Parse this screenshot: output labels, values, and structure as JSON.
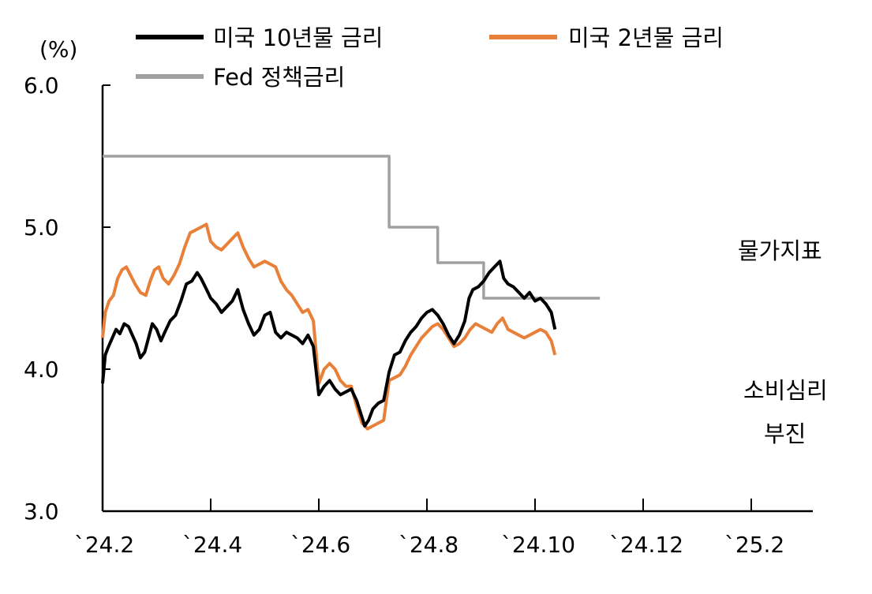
{
  "chart_data": {
    "type": "line",
    "unit_label": "(%)",
    "ylim": [
      3.0,
      6.0
    ],
    "y_ticks": [
      "6.0",
      "5.0",
      "4.0",
      "3.0"
    ],
    "x_ticks": [
      "`24.2",
      "`24.4",
      "`24.6",
      "`24.8",
      "`24.10",
      "`24.12",
      "`25.2"
    ],
    "grid": false,
    "legend_position": "top",
    "series": [
      {
        "name": "미국 10년물 금리",
        "color": "#000000",
        "points": [
          [
            0.0,
            3.9
          ],
          [
            0.05,
            4.1
          ],
          [
            0.1,
            4.15
          ],
          [
            0.18,
            4.22
          ],
          [
            0.25,
            4.28
          ],
          [
            0.32,
            4.25
          ],
          [
            0.4,
            4.32
          ],
          [
            0.48,
            4.3
          ],
          [
            0.55,
            4.24
          ],
          [
            0.62,
            4.18
          ],
          [
            0.7,
            4.08
          ],
          [
            0.78,
            4.12
          ],
          [
            0.85,
            4.22
          ],
          [
            0.92,
            4.32
          ],
          [
            1.0,
            4.28
          ],
          [
            1.08,
            4.2
          ],
          [
            1.15,
            4.26
          ],
          [
            1.25,
            4.34
          ],
          [
            1.35,
            4.38
          ],
          [
            1.45,
            4.48
          ],
          [
            1.55,
            4.6
          ],
          [
            1.65,
            4.62
          ],
          [
            1.75,
            4.68
          ],
          [
            1.82,
            4.64
          ],
          [
            1.9,
            4.58
          ],
          [
            2.0,
            4.5
          ],
          [
            2.1,
            4.46
          ],
          [
            2.2,
            4.4
          ],
          [
            2.3,
            4.44
          ],
          [
            2.4,
            4.48
          ],
          [
            2.5,
            4.56
          ],
          [
            2.6,
            4.42
          ],
          [
            2.7,
            4.32
          ],
          [
            2.8,
            4.24
          ],
          [
            2.9,
            4.28
          ],
          [
            3.0,
            4.38
          ],
          [
            3.1,
            4.4
          ],
          [
            3.2,
            4.26
          ],
          [
            3.3,
            4.22
          ],
          [
            3.4,
            4.26
          ],
          [
            3.5,
            4.24
          ],
          [
            3.6,
            4.22
          ],
          [
            3.7,
            4.18
          ],
          [
            3.8,
            4.24
          ],
          [
            3.9,
            4.16
          ],
          [
            4.0,
            3.82
          ],
          [
            4.1,
            3.88
          ],
          [
            4.2,
            3.92
          ],
          [
            4.3,
            3.86
          ],
          [
            4.4,
            3.82
          ],
          [
            4.5,
            3.84
          ],
          [
            4.6,
            3.86
          ],
          [
            4.7,
            3.78
          ],
          [
            4.8,
            3.66
          ],
          [
            4.85,
            3.6
          ],
          [
            4.92,
            3.64
          ],
          [
            5.0,
            3.72
          ],
          [
            5.1,
            3.76
          ],
          [
            5.2,
            3.78
          ],
          [
            5.3,
            3.98
          ],
          [
            5.4,
            4.1
          ],
          [
            5.5,
            4.12
          ],
          [
            5.6,
            4.2
          ],
          [
            5.7,
            4.26
          ],
          [
            5.8,
            4.3
          ],
          [
            5.9,
            4.36
          ],
          [
            6.0,
            4.4
          ],
          [
            6.1,
            4.42
          ],
          [
            6.2,
            4.38
          ],
          [
            6.3,
            4.32
          ],
          [
            6.4,
            4.24
          ],
          [
            6.5,
            4.18
          ],
          [
            6.6,
            4.24
          ],
          [
            6.7,
            4.34
          ],
          [
            6.78,
            4.5
          ],
          [
            6.85,
            4.56
          ],
          [
            6.95,
            4.58
          ],
          [
            7.05,
            4.62
          ],
          [
            7.15,
            4.68
          ],
          [
            7.25,
            4.72
          ],
          [
            7.35,
            4.76
          ],
          [
            7.42,
            4.64
          ],
          [
            7.5,
            4.6
          ],
          [
            7.6,
            4.58
          ],
          [
            7.7,
            4.54
          ],
          [
            7.8,
            4.5
          ],
          [
            7.9,
            4.54
          ],
          [
            8.0,
            4.48
          ],
          [
            8.1,
            4.5
          ],
          [
            8.2,
            4.46
          ],
          [
            8.3,
            4.4
          ],
          [
            8.37,
            4.28
          ]
        ]
      },
      {
        "name": "미국 2년물 금리",
        "color": "#E8803A",
        "points": [
          [
            0.0,
            4.22
          ],
          [
            0.05,
            4.4
          ],
          [
            0.12,
            4.48
          ],
          [
            0.2,
            4.52
          ],
          [
            0.28,
            4.64
          ],
          [
            0.36,
            4.7
          ],
          [
            0.44,
            4.72
          ],
          [
            0.52,
            4.66
          ],
          [
            0.6,
            4.6
          ],
          [
            0.7,
            4.54
          ],
          [
            0.8,
            4.52
          ],
          [
            0.88,
            4.62
          ],
          [
            0.96,
            4.7
          ],
          [
            1.04,
            4.72
          ],
          [
            1.12,
            4.64
          ],
          [
            1.22,
            4.6
          ],
          [
            1.32,
            4.66
          ],
          [
            1.42,
            4.74
          ],
          [
            1.52,
            4.86
          ],
          [
            1.62,
            4.96
          ],
          [
            1.72,
            4.98
          ],
          [
            1.82,
            5.0
          ],
          [
            1.92,
            5.02
          ],
          [
            2.0,
            4.9
          ],
          [
            2.1,
            4.86
          ],
          [
            2.2,
            4.84
          ],
          [
            2.3,
            4.88
          ],
          [
            2.4,
            4.92
          ],
          [
            2.5,
            4.96
          ],
          [
            2.6,
            4.86
          ],
          [
            2.7,
            4.78
          ],
          [
            2.8,
            4.72
          ],
          [
            2.9,
            4.74
          ],
          [
            3.0,
            4.76
          ],
          [
            3.1,
            4.74
          ],
          [
            3.2,
            4.72
          ],
          [
            3.3,
            4.62
          ],
          [
            3.4,
            4.56
          ],
          [
            3.5,
            4.52
          ],
          [
            3.6,
            4.46
          ],
          [
            3.7,
            4.4
          ],
          [
            3.8,
            4.42
          ],
          [
            3.9,
            4.34
          ],
          [
            4.0,
            3.9
          ],
          [
            4.1,
            4.0
          ],
          [
            4.2,
            4.04
          ],
          [
            4.3,
            4.0
          ],
          [
            4.4,
            3.92
          ],
          [
            4.5,
            3.88
          ],
          [
            4.6,
            3.88
          ],
          [
            4.7,
            3.74
          ],
          [
            4.8,
            3.62
          ],
          [
            4.9,
            3.58
          ],
          [
            5.0,
            3.6
          ],
          [
            5.1,
            3.62
          ],
          [
            5.2,
            3.64
          ],
          [
            5.3,
            3.92
          ],
          [
            5.4,
            3.94
          ],
          [
            5.5,
            3.96
          ],
          [
            5.6,
            4.02
          ],
          [
            5.7,
            4.1
          ],
          [
            5.8,
            4.16
          ],
          [
            5.9,
            4.22
          ],
          [
            6.0,
            4.26
          ],
          [
            6.1,
            4.3
          ],
          [
            6.2,
            4.32
          ],
          [
            6.3,
            4.28
          ],
          [
            6.4,
            4.22
          ],
          [
            6.5,
            4.16
          ],
          [
            6.6,
            4.18
          ],
          [
            6.7,
            4.22
          ],
          [
            6.8,
            4.28
          ],
          [
            6.9,
            4.32
          ],
          [
            7.0,
            4.3
          ],
          [
            7.1,
            4.28
          ],
          [
            7.2,
            4.26
          ],
          [
            7.3,
            4.32
          ],
          [
            7.4,
            4.36
          ],
          [
            7.5,
            4.28
          ],
          [
            7.6,
            4.26
          ],
          [
            7.7,
            4.24
          ],
          [
            7.8,
            4.22
          ],
          [
            7.9,
            4.24
          ],
          [
            8.0,
            4.26
          ],
          [
            8.1,
            4.28
          ],
          [
            8.2,
            4.26
          ],
          [
            8.3,
            4.2
          ],
          [
            8.37,
            4.1
          ]
        ]
      },
      {
        "name": "Fed 정책금리",
        "color": "#A0A0A0",
        "points": [
          [
            0.0,
            5.5
          ],
          [
            5.3,
            5.5
          ],
          [
            5.3,
            5.0
          ],
          [
            6.2,
            5.0
          ],
          [
            6.2,
            4.75
          ],
          [
            7.05,
            4.75
          ],
          [
            7.05,
            4.5
          ],
          [
            9.2,
            4.5
          ]
        ]
      }
    ],
    "annotations": [
      "물가지표",
      "소비심리",
      "부진"
    ]
  }
}
